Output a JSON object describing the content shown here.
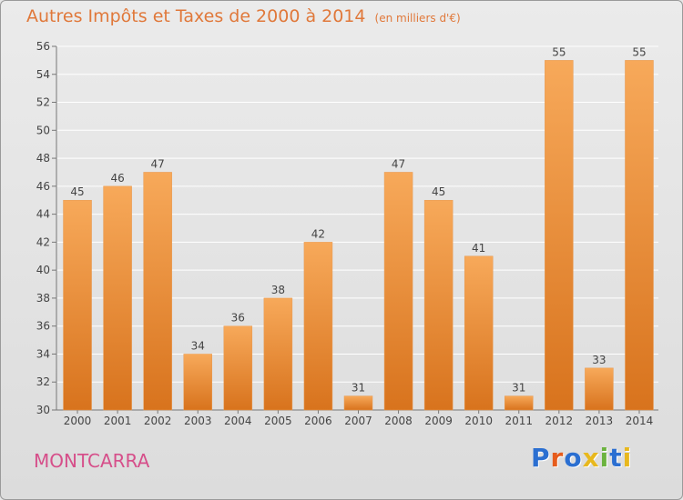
{
  "page": {
    "title": "Autres Impôts et Taxes de 2000 à 2014",
    "subtitle": "(en milliers d'€)",
    "location": "MONTCARRA",
    "logo_text": "Proxiti"
  },
  "colors": {
    "title": "#e0783a",
    "location": "#d64f8a",
    "bar_top": "#f7a95a",
    "bar_bottom": "#d8731d",
    "grid": "#ffffff",
    "logo": [
      "#2b6fd1",
      "#e65c1c",
      "#2b6fd1",
      "#e8b81e",
      "#6cb33f",
      "#2b6fd1",
      "#e8b81e"
    ]
  },
  "chart_data": {
    "type": "bar",
    "categories": [
      "2000",
      "2001",
      "2002",
      "2003",
      "2004",
      "2005",
      "2006",
      "2007",
      "2008",
      "2009",
      "2010",
      "2011",
      "2012",
      "2013",
      "2014"
    ],
    "values": [
      45,
      46,
      47,
      34,
      36,
      38,
      42,
      31,
      47,
      45,
      41,
      31,
      55,
      33,
      55
    ],
    "ylim": [
      30,
      56
    ],
    "yticks": [
      30,
      32,
      34,
      36,
      38,
      40,
      42,
      44,
      46,
      48,
      50,
      52,
      54,
      56
    ],
    "xlabel": "",
    "ylabel": "",
    "grid": true,
    "data_labels": true
  }
}
